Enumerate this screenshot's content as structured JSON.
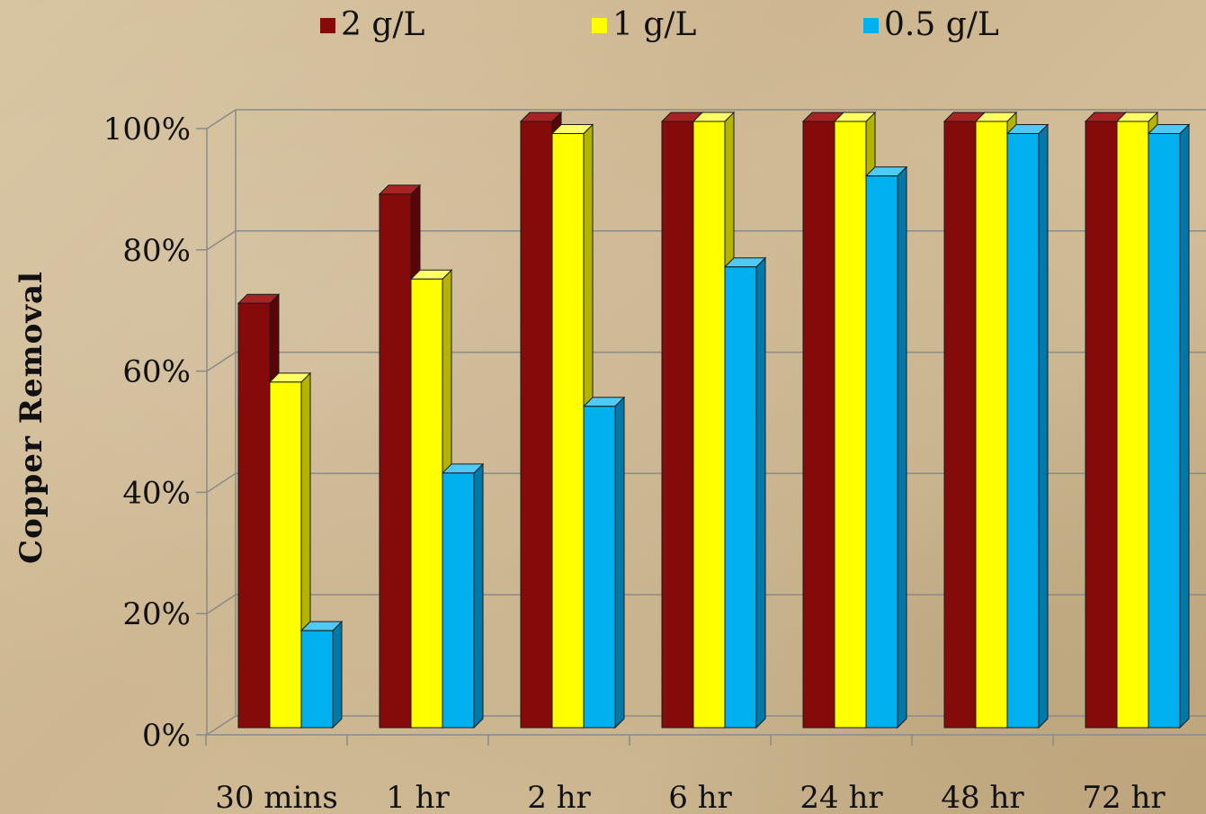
{
  "chart_data": {
    "type": "bar",
    "title": "",
    "xlabel": "",
    "ylabel": "Copper  Removal",
    "categories": [
      "30 mins",
      "1 hr",
      "2 hr",
      "6 hr",
      "24 hr",
      "48 hr",
      "72 hr"
    ],
    "series": [
      {
        "name": "2 g/L",
        "values": [
          70,
          88,
          100,
          100,
          100,
          100,
          100
        ]
      },
      {
        "name": "1 g/L",
        "values": [
          57,
          74,
          98,
          100,
          100,
          100,
          100
        ]
      },
      {
        "name": "0.5 g/L",
        "values": [
          16,
          42,
          53,
          76,
          91,
          98,
          98
        ]
      }
    ],
    "ylim": [
      0,
      100
    ],
    "yticks": [
      0,
      20,
      40,
      60,
      80,
      100
    ],
    "ytick_labels": [
      "0%",
      "20%",
      "40%",
      "60%",
      "80%",
      "100%"
    ],
    "grid": true,
    "legend_position": "top",
    "colors": {
      "2 g/L": {
        "front": "#850a0a",
        "side": "#5a0505",
        "top": "#a82424"
      },
      "1 g/L": {
        "front": "#ffff00",
        "side": "#b3b300",
        "top": "#ffff66"
      },
      "0.5 g/L": {
        "front": "#00b0ef",
        "side": "#0078a8",
        "top": "#4fcaf5"
      }
    }
  }
}
